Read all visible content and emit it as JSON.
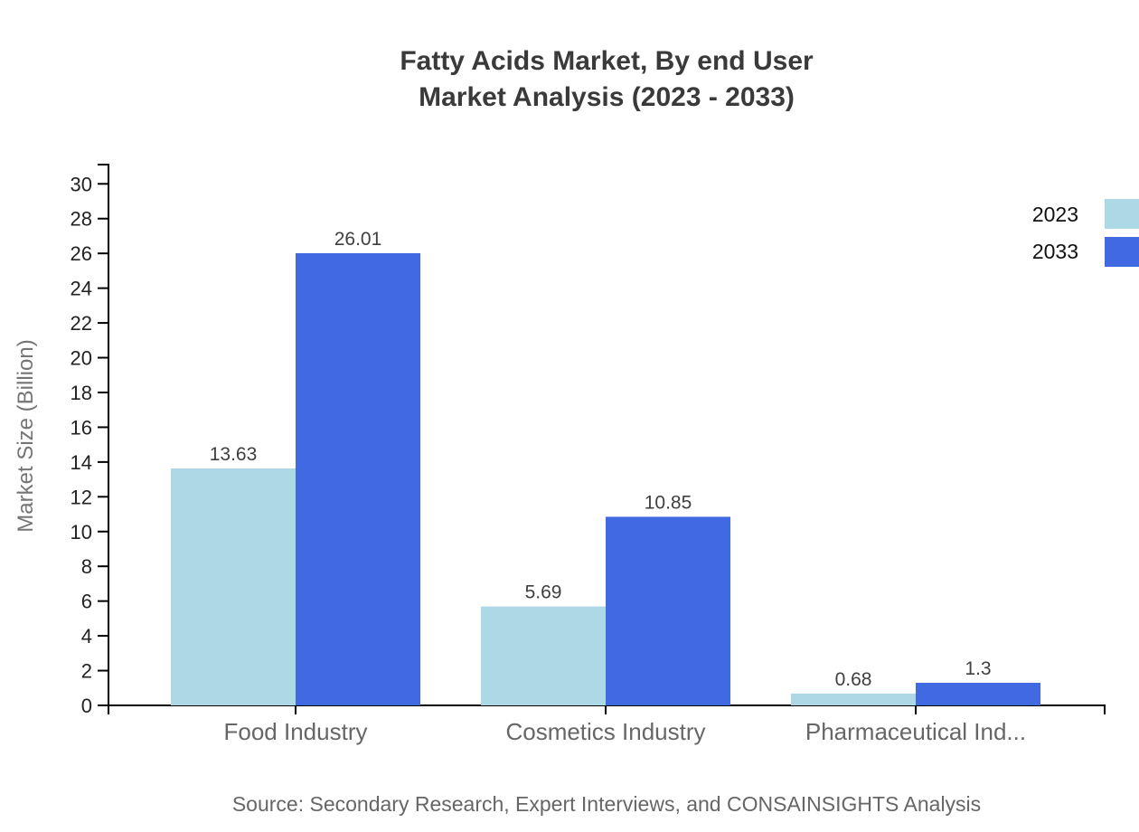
{
  "title": {
    "line1": "Fatty Acids Market, By end User",
    "line2": "Market Analysis (2023 - 2033)"
  },
  "legend": [
    {
      "label": "2023",
      "color": "#ADD8E6"
    },
    {
      "label": "2033",
      "color": "#4169E1"
    }
  ],
  "source": "Source: Secondary Research, Expert Interviews, and CONSAINSIGHTS Analysis",
  "chart_data": {
    "type": "bar",
    "title": "Fatty Acids Market, By end User Market Analysis (2023 - 2033)",
    "categories": [
      "Food Industry",
      "Cosmetics Industry",
      "Pharmaceutical Ind..."
    ],
    "series": [
      {
        "name": "2023",
        "color": "#ADD8E6",
        "values": [
          13.63,
          5.69,
          0.68
        ],
        "labels": [
          "13.63",
          "5.69",
          "0.68"
        ]
      },
      {
        "name": "2033",
        "color": "#4169E1",
        "values": [
          26.01,
          10.85,
          1.3
        ],
        "labels": [
          "26.01",
          "10.85",
          "1.3"
        ]
      }
    ],
    "xlabel": "",
    "ylabel": "Market Size (Billion)",
    "ylim": [
      0,
      30
    ],
    "ytick_step": 2,
    "grid": false,
    "legend_position": "top-right",
    "bar_value_labels_shown": true
  },
  "colors": {
    "axis": "#000000",
    "title_text": "#3a3a3a",
    "y_tick_text": "#222222",
    "category_text": "#666666",
    "value_label_text": "#3f3f3f",
    "y_axis_title_text": "#757575",
    "source_text": "#666666",
    "legend_text": "#111111",
    "background": "#ffffff"
  }
}
